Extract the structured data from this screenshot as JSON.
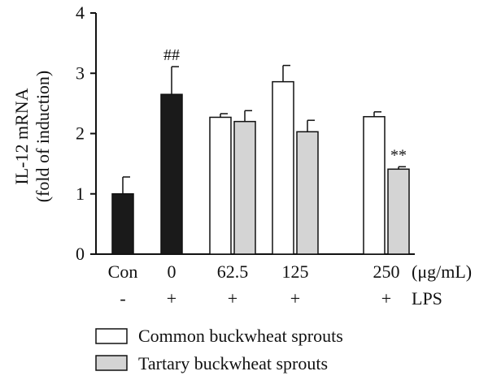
{
  "chart_data": {
    "type": "bar",
    "ylabel_line1": "IL-12 mRNA",
    "ylabel_line2": "(fold of induction)",
    "ylim": [
      0,
      4
    ],
    "yticks": [
      "0",
      "1",
      "2",
      "3",
      "4"
    ],
    "groups": [
      {
        "label": "Con",
        "lps": "-"
      },
      {
        "label": "0",
        "lps": "+"
      },
      {
        "label": "62.5",
        "lps": "+"
      },
      {
        "label": "125",
        "lps": "+"
      },
      {
        "label": "250",
        "lps": "+"
      }
    ],
    "unit_label": "(μg/mL)",
    "lps_label": "LPS",
    "bars": [
      {
        "group": 0,
        "series": "control",
        "value": 1.0,
        "error": 0.28,
        "annotation": ""
      },
      {
        "group": 1,
        "series": "control",
        "value": 2.65,
        "error": 0.46,
        "annotation": "##"
      },
      {
        "group": 2,
        "series": "common",
        "value": 2.27,
        "error": 0.06,
        "annotation": ""
      },
      {
        "group": 2,
        "series": "tartary",
        "value": 2.2,
        "error": 0.18,
        "annotation": ""
      },
      {
        "group": 3,
        "series": "common",
        "value": 2.86,
        "error": 0.27,
        "annotation": ""
      },
      {
        "group": 3,
        "series": "tartary",
        "value": 2.03,
        "error": 0.19,
        "annotation": ""
      },
      {
        "group": 4,
        "series": "common",
        "value": 2.28,
        "error": 0.08,
        "annotation": ""
      },
      {
        "group": 4,
        "series": "tartary",
        "value": 1.41,
        "error": 0.04,
        "annotation": "**"
      }
    ],
    "series": [
      {
        "key": "control",
        "name": "",
        "color": "#1a1a1a"
      },
      {
        "key": "common",
        "name": "Common buckwheat sprouts",
        "color": "#ffffff"
      },
      {
        "key": "tartary",
        "name": "Tartary buckwheat sprouts",
        "color": "#d4d4d4"
      }
    ],
    "legend_position": "bottom"
  }
}
